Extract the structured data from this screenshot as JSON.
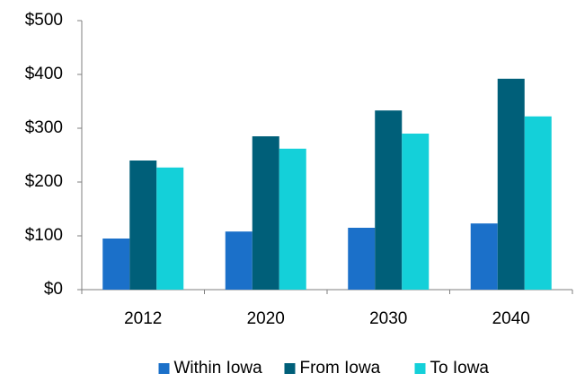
{
  "chart_data": {
    "type": "bar",
    "categories": [
      "2012",
      "2020",
      "2030",
      "2040"
    ],
    "series": [
      {
        "name": "Within Iowa",
        "color": "#1b70c9",
        "values": [
          95,
          108,
          115,
          123
        ]
      },
      {
        "name": "From Iowa",
        "color": "#005f79",
        "values": [
          240,
          285,
          333,
          392
        ]
      },
      {
        "name": "To Iowa",
        "color": "#14d0d9",
        "values": [
          227,
          262,
          290,
          322
        ]
      }
    ],
    "ylim": [
      0,
      500
    ],
    "yticks": [
      {
        "value": 0,
        "label": "$0"
      },
      {
        "value": 100,
        "label": "$100"
      },
      {
        "value": 200,
        "label": "$200"
      },
      {
        "value": 300,
        "label": "$300"
      },
      {
        "value": 400,
        "label": "$400"
      },
      {
        "value": 500,
        "label": "$500"
      }
    ],
    "grid": false,
    "legend": "bottom"
  }
}
